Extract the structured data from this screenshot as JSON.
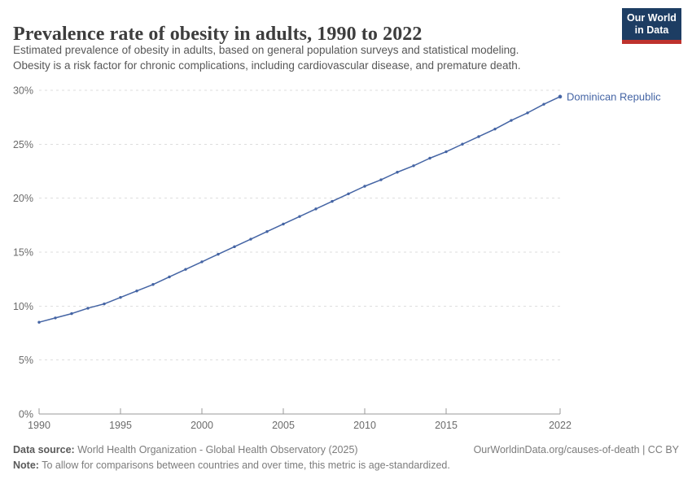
{
  "header": {
    "title": "Prevalence rate of obesity in adults, 1990 to 2022",
    "subtitle_line1": "Estimated prevalence of obesity in adults, based on general population surveys and statistical modeling.",
    "subtitle_line2": "Obesity is a risk factor for chronic complications, including cardiovascular disease, and premature death.",
    "logo": {
      "line1": "Our World",
      "line2": "in Data",
      "bg_color": "#1d3d63",
      "bar_color": "#be322d"
    }
  },
  "chart_data": {
    "type": "line",
    "title": "Prevalence rate of obesity in adults, 1990 to 2022",
    "xlabel": "",
    "ylabel": "",
    "xlim": [
      1990,
      2022
    ],
    "ylim": [
      0,
      30
    ],
    "grid": "horizontal-dashed",
    "legend_position": "end-of-line-label",
    "x_ticks": [
      1990,
      1995,
      2000,
      2005,
      2010,
      2015,
      2022
    ],
    "y_ticks": [
      0,
      5,
      10,
      15,
      20,
      25,
      30
    ],
    "y_tick_suffix": "%",
    "series": [
      {
        "name": "Dominican Republic",
        "color": "#4464a4",
        "x": [
          1990,
          1991,
          1992,
          1993,
          1994,
          1995,
          1996,
          1997,
          1998,
          1999,
          2000,
          2001,
          2002,
          2003,
          2004,
          2005,
          2006,
          2007,
          2008,
          2009,
          2010,
          2011,
          2012,
          2013,
          2014,
          2015,
          2016,
          2017,
          2018,
          2019,
          2020,
          2021,
          2022
        ],
        "values": [
          8.5,
          8.9,
          9.3,
          9.8,
          10.2,
          10.8,
          11.4,
          12.0,
          12.7,
          13.4,
          14.1,
          14.8,
          15.5,
          16.2,
          16.9,
          17.6,
          18.3,
          19.0,
          19.7,
          20.4,
          21.1,
          21.7,
          22.4,
          23.0,
          23.7,
          24.3,
          25.0,
          25.7,
          26.4,
          27.2,
          27.9,
          28.7,
          29.4
        ]
      }
    ],
    "colors": {
      "gridline": "#dedede",
      "axis": "#999999",
      "tick_label": "#6b6b6b",
      "entity_label": "#4464a4"
    }
  },
  "footer": {
    "source_label": "Data source:",
    "source_text": " World Health Organization - Global Health Observatory (2025)",
    "credit": "OurWorldinData.org/causes-of-death | CC BY",
    "note_label": "Note:",
    "note_text": " To allow for comparisons between countries and over time, this metric is age-standardized."
  }
}
